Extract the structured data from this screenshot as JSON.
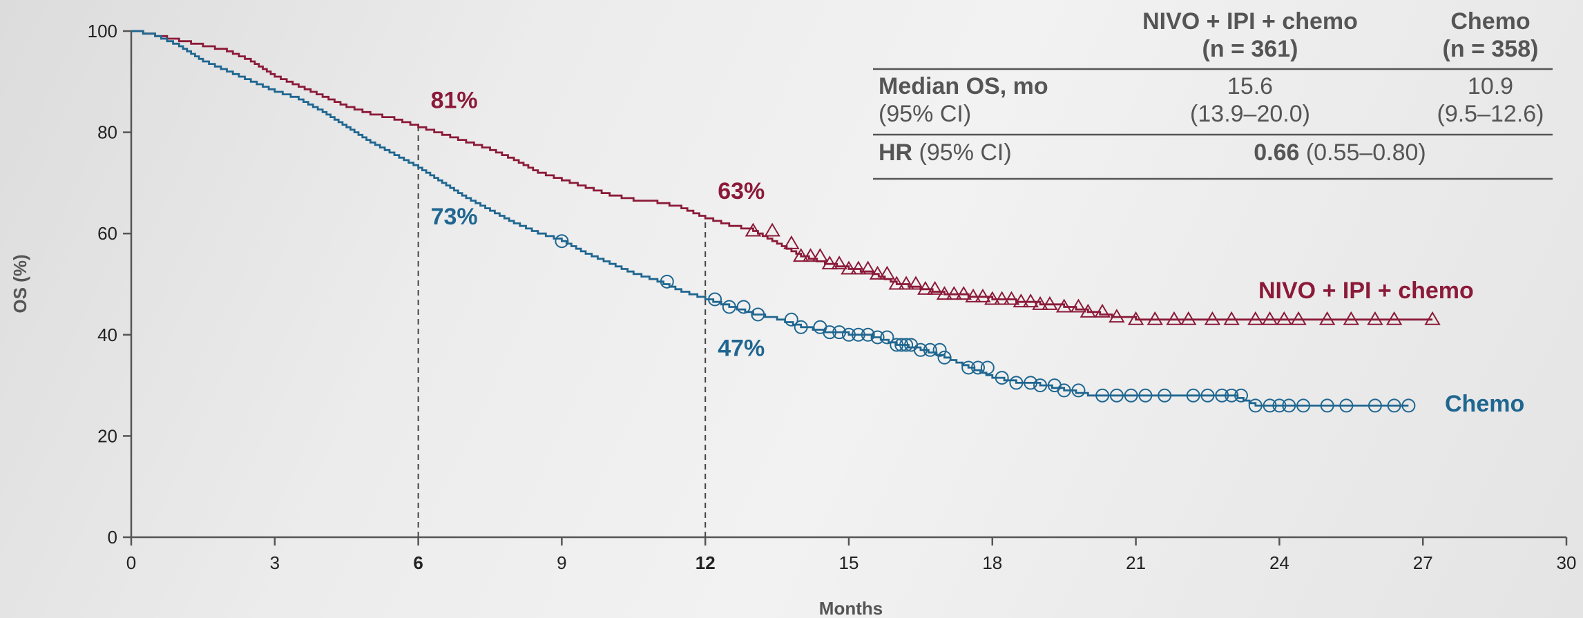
{
  "colors": {
    "nivo": "#8b1a38",
    "chemo": "#1f6690",
    "axis": "#555555",
    "ref": "#444444"
  },
  "chart_data": {
    "type": "line",
    "xlabel": "Months",
    "ylabel": "OS (%)",
    "xlim": [
      0,
      30
    ],
    "ylim": [
      0,
      100
    ],
    "x_ticks": [
      "0",
      "3",
      "6",
      "9",
      "12",
      "15",
      "18",
      "21",
      "24",
      "27",
      "30"
    ],
    "x_ticks_bold": [
      "6",
      "12"
    ],
    "y_ticks": [
      "0",
      "20",
      "40",
      "60",
      "80",
      "100"
    ],
    "grid": false,
    "reference_lines_x": [
      6,
      12
    ],
    "series": [
      {
        "name": "NIVO + IPI + chemo",
        "censor_marker": "triangle",
        "x": [
          0,
          0.5,
          1,
          1.5,
          2,
          2.5,
          3,
          3.5,
          4,
          4.5,
          5,
          5.5,
          6,
          6.5,
          7,
          7.5,
          8,
          8.5,
          9,
          9.5,
          10,
          10.5,
          11,
          11.5,
          12,
          12.5,
          13,
          13.5,
          14,
          14.5,
          15,
          15.5,
          16,
          16.5,
          17,
          17.5,
          18,
          18.5,
          19,
          19.5,
          20,
          20.5,
          21,
          22,
          23,
          24,
          25,
          26,
          27.2
        ],
        "y": [
          100,
          99,
          98,
          97,
          96,
          94,
          91,
          89,
          87,
          85,
          83.5,
          82.5,
          81,
          79.5,
          78,
          76.5,
          74.5,
          72,
          70.5,
          69,
          67.5,
          66.5,
          66,
          65,
          63,
          61.5,
          60.5,
          58,
          55.5,
          54,
          53,
          52,
          50,
          49,
          48,
          47.5,
          47,
          46.5,
          46,
          45.5,
          44.5,
          43.5,
          43,
          43,
          43,
          43,
          43,
          43,
          43
        ],
        "censored_x": [
          13,
          13.4,
          13.8,
          14,
          14.2,
          14.4,
          14.6,
          14.8,
          15,
          15.2,
          15.4,
          15.6,
          15.8,
          16,
          16.2,
          16.4,
          16.6,
          16.8,
          17,
          17.2,
          17.4,
          17.6,
          17.8,
          18,
          18.2,
          18.4,
          18.6,
          18.8,
          19,
          19.2,
          19.5,
          19.8,
          20,
          20.3,
          20.6,
          21,
          21.4,
          21.8,
          22.1,
          22.6,
          23,
          23.5,
          23.8,
          24.1,
          24.4,
          25,
          25.5,
          26,
          26.4,
          27.2
        ],
        "milestones": [
          {
            "x": 6,
            "y": 81,
            "label": "81%"
          },
          {
            "x": 12,
            "y": 63,
            "label": "63%"
          }
        ]
      },
      {
        "name": "Chemo",
        "censor_marker": "circle",
        "x": [
          0,
          0.5,
          1,
          1.5,
          2,
          2.5,
          3,
          3.5,
          4,
          4.5,
          5,
          5.5,
          6,
          6.5,
          7,
          7.5,
          8,
          8.5,
          9,
          9.5,
          10,
          10.5,
          11,
          11.5,
          12,
          12.5,
          13,
          13.5,
          14,
          14.5,
          15,
          15.5,
          16,
          16.5,
          17,
          17.5,
          18,
          18.5,
          19,
          19.5,
          20,
          20.5,
          21,
          22,
          23,
          23.5,
          24,
          25,
          26,
          26.7
        ],
        "y": [
          100,
          99,
          97,
          94,
          92,
          90,
          88,
          86.5,
          84,
          81,
          78,
          75.5,
          73,
          70,
          67,
          64.5,
          62,
          60,
          58.5,
          56,
          54,
          52,
          50.5,
          48.5,
          47,
          45.5,
          44,
          43,
          41.5,
          40.5,
          40,
          39.5,
          38,
          37,
          35.5,
          33.5,
          31.5,
          30.5,
          30,
          29,
          28,
          28,
          28,
          28,
          28,
          26,
          26,
          26,
          26,
          26
        ],
        "censored_x": [
          9,
          11.2,
          12.2,
          12.5,
          12.8,
          13.1,
          13.8,
          14,
          14.4,
          14.6,
          14.8,
          15,
          15.2,
          15.4,
          15.6,
          15.8,
          16,
          16.1,
          16.2,
          16.3,
          16.5,
          16.7,
          16.9,
          17,
          17.5,
          17.7,
          17.9,
          18.2,
          18.5,
          18.8,
          19,
          19.3,
          19.5,
          19.8,
          20.3,
          20.6,
          20.9,
          21.2,
          21.6,
          22.2,
          22.5,
          22.8,
          23,
          23.2,
          23.5,
          23.8,
          24,
          24.2,
          24.5,
          25,
          25.4,
          26,
          26.4,
          26.7
        ],
        "milestones": [
          {
            "x": 6,
            "y": 73,
            "label": "73%"
          },
          {
            "x": 12,
            "y": 47,
            "label": "47%"
          }
        ]
      }
    ]
  },
  "table": {
    "col1_head": "NIVO + IPI + chemo",
    "col1_n": "(n = 361)",
    "col2_head": "Chemo",
    "col2_n": "(n = 358)",
    "row1_label": "Median OS, mo",
    "row1_sub": "(95% CI)",
    "row1_col1": "15.6",
    "row1_col1_ci": "(13.9–20.0)",
    "row1_col2": "10.9",
    "row1_col2_ci": "(9.5–12.6)",
    "row2_label_bold": "HR",
    "row2_label_rest": " (95% CI)",
    "row2_value_bold": "0.66",
    "row2_value_rest": " (0.55–0.80)"
  }
}
